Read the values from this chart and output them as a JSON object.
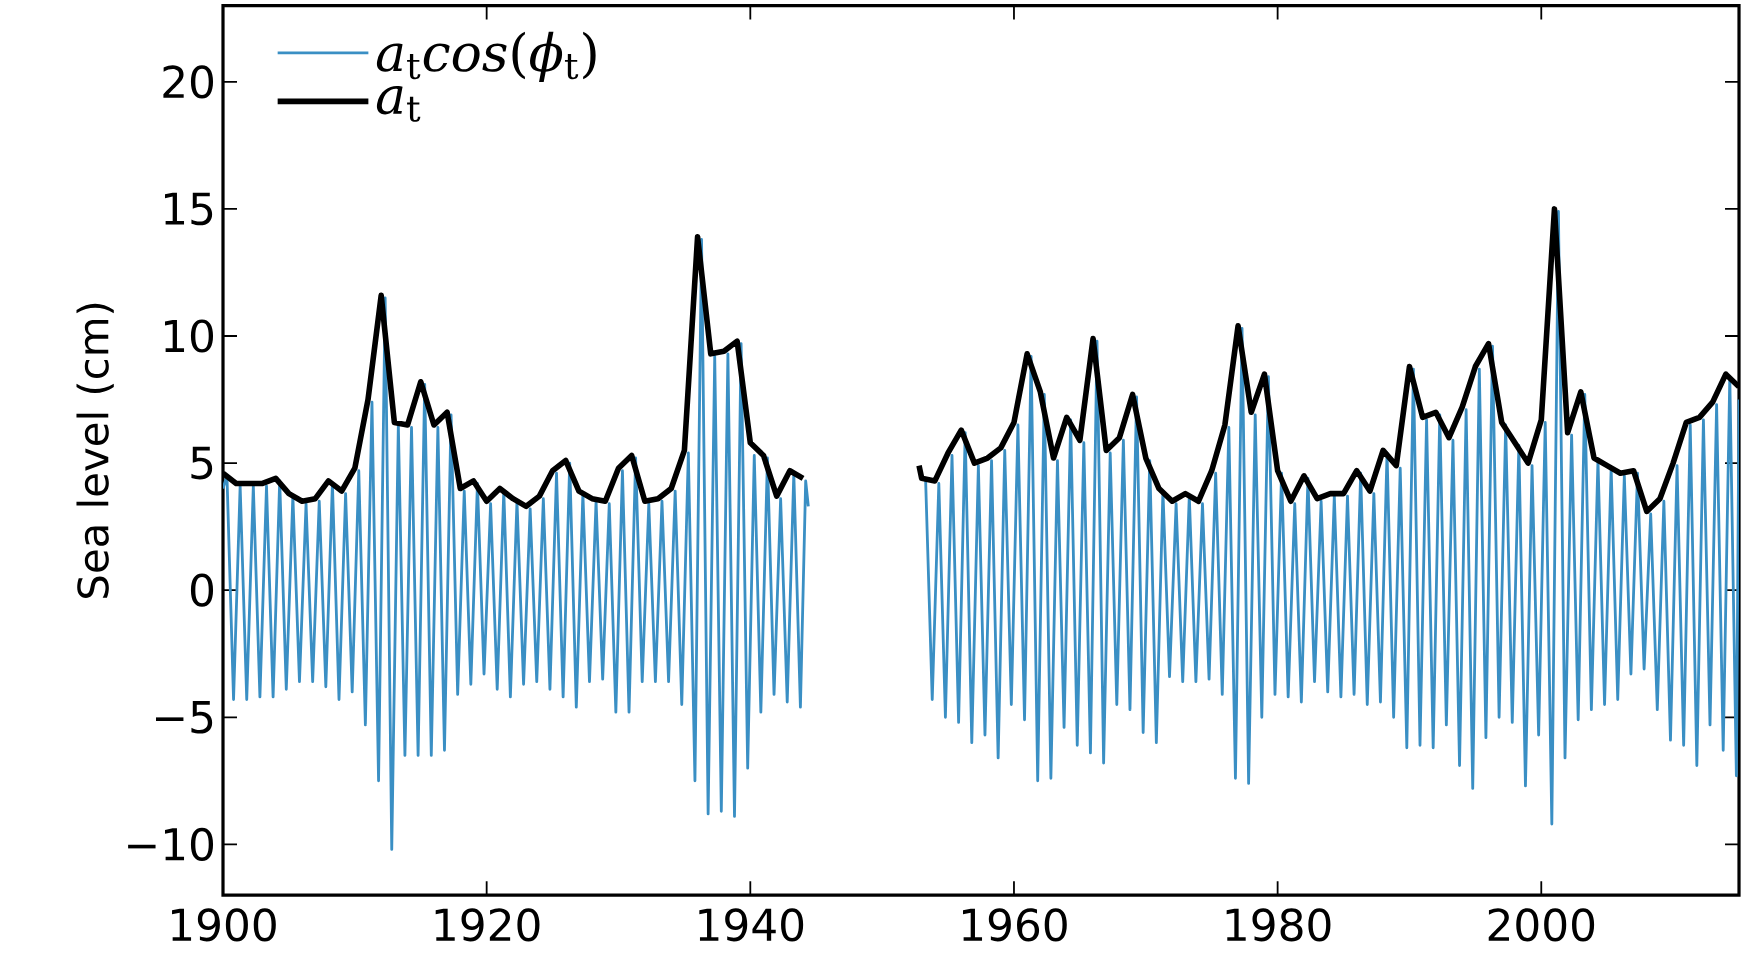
{
  "chart_data": {
    "type": "line",
    "ylabel": "Sea level (cm)",
    "xlim": [
      1900,
      2015
    ],
    "ylim": [
      -12,
      23
    ],
    "xticks": [
      1900,
      1920,
      1940,
      1960,
      1980,
      2000
    ],
    "yticks": [
      {
        "value": -10,
        "label": "−10"
      },
      {
        "value": -5,
        "label": "−5"
      },
      0,
      5,
      10,
      15,
      20
    ],
    "legend": "top left",
    "line_style": "solid",
    "series": [
      {
        "name": "*a*$_{t}$*cos*(*ϕ*$_{t}$)",
        "color": "#3a8fc4",
        "x": [
          1900.0,
          1900.3,
          1900.8,
          1901.3,
          1901.8,
          1902.3,
          1902.8,
          1903.3,
          1903.8,
          1904.3,
          1904.8,
          1905.3,
          1905.8,
          1906.3,
          1906.8,
          1907.3,
          1907.8,
          1908.3,
          1908.8,
          1909.3,
          1909.8,
          1910.3,
          1910.8,
          1911.3,
          1911.8,
          1912.3,
          1912.8,
          1913.3,
          1913.8,
          1914.3,
          1914.8,
          1915.3,
          1915.8,
          1916.3,
          1916.8,
          1917.3,
          1917.8,
          1918.3,
          1918.8,
          1919.3,
          1919.8,
          1920.3,
          1920.8,
          1921.3,
          1921.8,
          1922.3,
          1922.8,
          1923.3,
          1923.8,
          1924.3,
          1924.8,
          1925.3,
          1925.8,
          1926.3,
          1926.8,
          1927.3,
          1927.8,
          1928.3,
          1928.8,
          1929.3,
          1929.8,
          1930.3,
          1930.8,
          1931.3,
          1931.8,
          1932.3,
          1932.8,
          1933.3,
          1933.8,
          1934.3,
          1934.8,
          1935.3,
          1935.8,
          1936.3,
          1936.8,
          1937.3,
          1937.8,
          1938.3,
          1938.8,
          1939.3,
          1939.8,
          1940.3,
          1940.8,
          1941.3,
          1941.8,
          1942.3,
          1942.8,
          1943.3,
          1943.8,
          1944.2,
          1944.4,
          1948.0,
          1952.9,
          1953.3,
          1953.8,
          1954.3,
          1954.8,
          1955.3,
          1955.8,
          1956.3,
          1956.8,
          1957.3,
          1957.8,
          1958.3,
          1958.8,
          1959.3,
          1959.8,
          1960.3,
          1960.8,
          1961.3,
          1961.8,
          1962.3,
          1962.8,
          1963.3,
          1963.8,
          1964.3,
          1964.8,
          1965.3,
          1965.8,
          1966.3,
          1966.8,
          1967.3,
          1967.8,
          1968.3,
          1968.8,
          1969.3,
          1969.8,
          1970.3,
          1970.8,
          1971.3,
          1971.8,
          1972.3,
          1972.8,
          1973.3,
          1973.8,
          1974.3,
          1974.8,
          1975.3,
          1975.8,
          1976.3,
          1976.8,
          1977.3,
          1977.8,
          1978.3,
          1978.8,
          1979.3,
          1979.8,
          1980.3,
          1980.8,
          1981.3,
          1981.8,
          1982.3,
          1982.8,
          1983.3,
          1983.8,
          1984.3,
          1984.8,
          1985.3,
          1985.8,
          1986.3,
          1986.8,
          1987.3,
          1987.8,
          1988.3,
          1988.8,
          1989.3,
          1989.8,
          1990.3,
          1990.8,
          1991.3,
          1991.8,
          1992.3,
          1992.8,
          1993.3,
          1993.8,
          1994.3,
          1994.8,
          1995.3,
          1995.8,
          1996.3,
          1996.8,
          1997.3,
          1997.8,
          1998.3,
          1998.8,
          1999.3,
          1999.8,
          2000.3,
          2000.8,
          2001.3,
          2001.8,
          2002.3,
          2002.8,
          2003.3,
          2003.8,
          2004.3,
          2004.8,
          2005.3,
          2005.8,
          2006.3,
          2006.8,
          2007.3,
          2007.8,
          2008.3,
          2008.8,
          2009.3,
          2009.8,
          2010.3,
          2010.8,
          2011.3,
          2011.8,
          2012.3,
          2012.8,
          2013.3,
          2013.8,
          2014.3,
          2014.8,
          2015.0
        ],
        "values": [
          4.0,
          4.5,
          -4.3,
          4.1,
          -4.3,
          4.1,
          -4.2,
          4.1,
          -4.2,
          4.3,
          -3.9,
          3.7,
          -3.6,
          3.4,
          -3.6,
          3.5,
          -3.8,
          4.2,
          -4.3,
          3.8,
          -4.0,
          4.7,
          -5.3,
          7.4,
          -7.5,
          11.5,
          -10.2,
          6.5,
          -6.5,
          6.4,
          -6.5,
          8.1,
          -6.5,
          6.4,
          -6.3,
          6.9,
          -4.1,
          3.9,
          -3.7,
          4.2,
          -3.3,
          3.4,
          -3.9,
          3.9,
          -4.2,
          3.5,
          -3.7,
          3.2,
          -3.6,
          3.6,
          -3.9,
          4.6,
          -4.2,
          5.0,
          -4.6,
          3.8,
          -3.6,
          3.5,
          -3.5,
          3.4,
          -4.8,
          4.7,
          -4.8,
          5.2,
          -3.6,
          3.4,
          -3.6,
          3.5,
          -3.6,
          3.9,
          -4.5,
          5.4,
          -7.5,
          13.8,
          -8.8,
          9.2,
          -8.7,
          9.3,
          -8.9,
          9.7,
          -7.0,
          5.3,
          -4.8,
          5.2,
          -4.1,
          3.6,
          -4.4,
          4.6,
          -4.6,
          4.3,
          3.3,
          null,
          4.6,
          4.3,
          -4.3,
          4.2,
          -5.0,
          5.3,
          -5.2,
          6.2,
          -6.0,
          4.9,
          -5.7,
          5.1,
          -6.6,
          5.5,
          -4.5,
          6.5,
          -5.1,
          9.2,
          -7.5,
          7.7,
          -7.4,
          5.1,
          -5.4,
          6.7,
          -6.1,
          5.8,
          -6.4,
          9.8,
          -6.8,
          5.4,
          -4.5,
          5.9,
          -4.7,
          7.6,
          -5.6,
          5.1,
          -6.0,
          3.9,
          -3.4,
          3.4,
          -3.6,
          3.7,
          -3.6,
          3.4,
          -3.5,
          4.6,
          -4.1,
          6.4,
          -7.4,
          10.3,
          -7.6,
          6.9,
          -5.0,
          8.4,
          -4.1,
          4.6,
          -4.2,
          3.4,
          -4.4,
          4.4,
          -3.6,
          3.5,
          -4.0,
          3.7,
          -4.2,
          3.7,
          -4.1,
          4.6,
          -4.5,
          3.8,
          -4.4,
          5.4,
          -5.0,
          4.8,
          -6.2,
          8.7,
          -6.1,
          6.7,
          -6.2,
          6.9,
          -5.3,
          5.9,
          -6.9,
          7.1,
          -7.8,
          8.7,
          -5.8,
          9.6,
          -5.0,
          6.5,
          -5.2,
          5.7,
          -7.7,
          4.9,
          -5.7,
          6.6,
          -9.2,
          14.9,
          -6.6,
          6.1,
          -5.1,
          7.7,
          -4.7,
          5.1,
          -4.5,
          4.8,
          -4.3,
          4.5,
          -3.3,
          4.6,
          -3.1,
          3.0,
          -4.7,
          3.5,
          -5.9,
          4.9,
          -6.1,
          6.5,
          -6.9,
          6.7,
          -5.3,
          7.3,
          -6.3,
          8.4,
          -7.3,
          7.5
        ]
      },
      {
        "name": "*a*$_{t}$",
        "color": "#000000",
        "x": [
          1900,
          1901,
          1902,
          1903,
          1904,
          1905,
          1906,
          1907,
          1908,
          1909,
          1910,
          1911,
          1912,
          1913,
          1914,
          1915,
          1916,
          1917,
          1918,
          1919,
          1920,
          1921,
          1922,
          1923,
          1924,
          1925,
          1926,
          1927,
          1928,
          1929,
          1930,
          1931,
          1932,
          1933,
          1934,
          1935,
          1936,
          1937,
          1938,
          1939,
          1940,
          1941,
          1942,
          1943,
          1944,
          1948,
          1952.8,
          1953,
          1954,
          1955,
          1956,
          1957,
          1958,
          1959,
          1960,
          1961,
          1962,
          1963,
          1964,
          1965,
          1966,
          1967,
          1968,
          1969,
          1970,
          1971,
          1972,
          1973,
          1974,
          1975,
          1976,
          1977,
          1978,
          1979,
          1980,
          1981,
          1982,
          1983,
          1984,
          1985,
          1986,
          1987,
          1988,
          1989,
          1990,
          1991,
          1992,
          1993,
          1994,
          1995,
          1996,
          1997,
          1998,
          1999,
          2000,
          2001,
          2002,
          2003,
          2004,
          2005,
          2006,
          2007,
          2008,
          2009,
          2010,
          2011,
          2012,
          2013,
          2014,
          2015
        ],
        "values": [
          4.6,
          4.2,
          4.2,
          4.2,
          4.4,
          3.8,
          3.5,
          3.6,
          4.3,
          3.9,
          4.8,
          7.5,
          11.6,
          6.6,
          6.5,
          8.2,
          6.5,
          7.0,
          4.0,
          4.3,
          3.5,
          4.0,
          3.6,
          3.3,
          3.7,
          4.7,
          5.1,
          3.9,
          3.6,
          3.5,
          4.8,
          5.3,
          3.5,
          3.6,
          4.0,
          5.5,
          13.9,
          9.3,
          9.4,
          9.8,
          5.8,
          5.3,
          3.7,
          4.7,
          4.4,
          null,
          4.9,
          4.4,
          4.3,
          5.4,
          6.3,
          5.0,
          5.2,
          5.6,
          6.6,
          9.3,
          7.8,
          5.2,
          6.8,
          5.9,
          9.9,
          5.5,
          6.0,
          7.7,
          5.2,
          4.0,
          3.5,
          3.8,
          3.5,
          4.7,
          6.5,
          10.4,
          7.0,
          8.5,
          4.7,
          3.5,
          4.5,
          3.6,
          3.8,
          3.8,
          4.7,
          3.9,
          5.5,
          4.9,
          8.8,
          6.8,
          7.0,
          6.0,
          7.2,
          8.8,
          9.7,
          6.6,
          5.8,
          5.0,
          6.7,
          15.0,
          6.2,
          7.8,
          5.2,
          4.9,
          4.6,
          4.7,
          3.1,
          3.6,
          5.0,
          6.6,
          6.8,
          7.4,
          8.5,
          8.0
        ]
      }
    ]
  }
}
